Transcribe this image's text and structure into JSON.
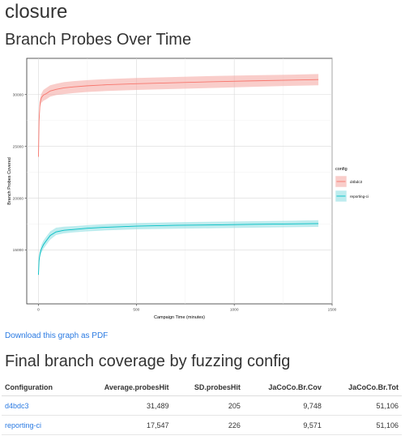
{
  "page": {
    "title": "closure",
    "graph_heading": "Branch Probes Over Time",
    "pdf_link": "Download this graph as PDF",
    "table_heading": "Final branch coverage by fuzzing config"
  },
  "chart_data": {
    "type": "line",
    "title": "",
    "xlabel": "Campaign Time (minutes)",
    "ylabel": "Branch Probes Covered",
    "xlim": [
      -60,
      1500
    ],
    "ylim": [
      9800,
      33500
    ],
    "xticks": [
      0,
      500,
      1000,
      1500
    ],
    "yticks": [
      15000,
      20000,
      25000,
      30000
    ],
    "grid": true,
    "legend_title": "config",
    "legend_position": "right",
    "series": [
      {
        "name": "d4bdc3",
        "color": "#F8766D",
        "band_color": "#F4A49E",
        "x": [
          0,
          3,
          8,
          15,
          25,
          40,
          60,
          90,
          130,
          180,
          250,
          350,
          500,
          700,
          900,
          1100,
          1300,
          1430
        ],
        "y": [
          24000,
          27500,
          29200,
          29700,
          29950,
          30100,
          30350,
          30500,
          30650,
          30750,
          30850,
          30950,
          31050,
          31150,
          31250,
          31330,
          31400,
          31450
        ],
        "lower": [
          24000,
          27000,
          28800,
          29200,
          29400,
          29550,
          29800,
          29950,
          30050,
          30150,
          30250,
          30350,
          30450,
          30550,
          30650,
          30750,
          30850,
          30900
        ],
        "upper": [
          24000,
          28000,
          29600,
          30100,
          30450,
          30650,
          30900,
          31050,
          31200,
          31300,
          31400,
          31500,
          31600,
          31700,
          31800,
          31870,
          31930,
          31980
        ]
      },
      {
        "name": "reporting-ci",
        "color": "#00BFC4",
        "band_color": "#86DDE0",
        "x": [
          0,
          3,
          8,
          15,
          25,
          40,
          60,
          90,
          130,
          180,
          250,
          350,
          500,
          700,
          900,
          1100,
          1300,
          1430
        ],
        "y": [
          12600,
          14000,
          14700,
          15100,
          15500,
          15900,
          16400,
          16750,
          16900,
          16980,
          17100,
          17200,
          17300,
          17380,
          17420,
          17480,
          17520,
          17550
        ],
        "lower": [
          12600,
          13700,
          14300,
          14700,
          15100,
          15500,
          16000,
          16450,
          16600,
          16700,
          16800,
          16900,
          17000,
          17050,
          17100,
          17150,
          17200,
          17230
        ],
        "upper": [
          12600,
          14300,
          15000,
          15500,
          15900,
          16300,
          16800,
          17150,
          17250,
          17300,
          17400,
          17500,
          17600,
          17680,
          17730,
          17780,
          17830,
          17880
        ]
      }
    ]
  },
  "table": {
    "headers": [
      "Configuration",
      "Average.probesHit",
      "SD.probesHit",
      "JaCoCo.Br.Cov",
      "JaCoCo.Br.Tot"
    ],
    "rows": [
      [
        "d4bdc3",
        "31,489",
        "205",
        "9,748",
        "51,106"
      ],
      [
        "reporting-ci",
        "17,547",
        "226",
        "9,571",
        "51,106"
      ]
    ]
  }
}
